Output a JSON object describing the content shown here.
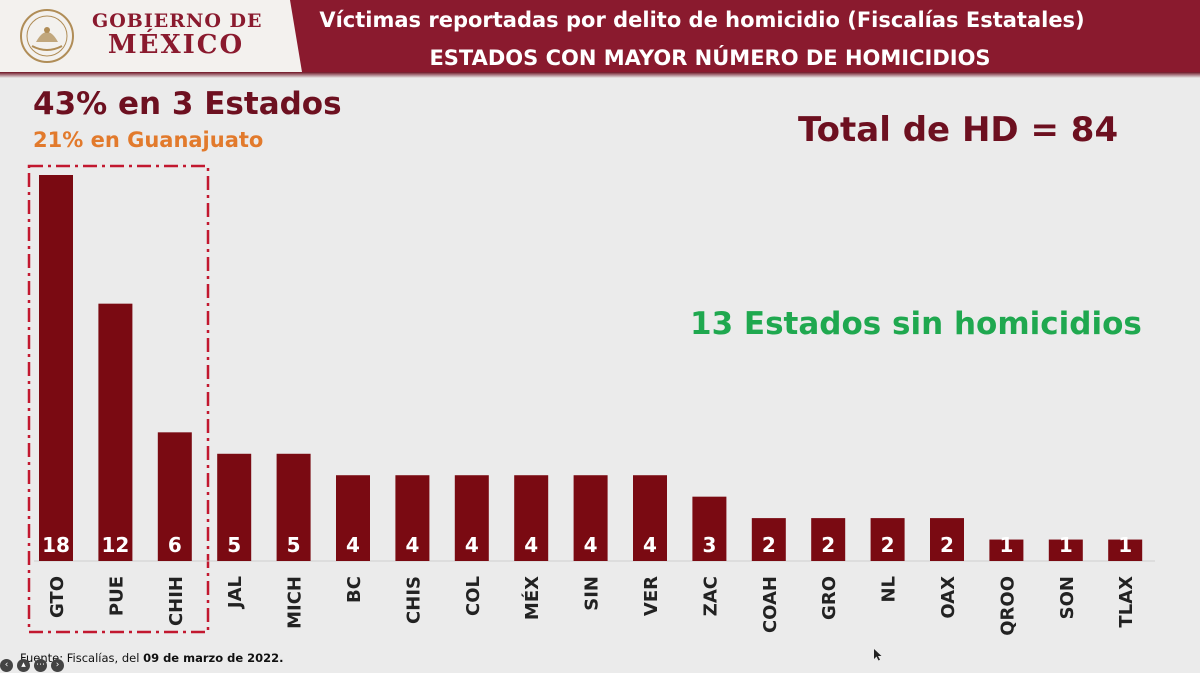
{
  "header": {
    "gov_line1": "GOBIERNO DE",
    "gov_line2": "MÉXICO",
    "title": "Víctimas reportadas por delito de homicidio (Fiscalías Estatales)",
    "subtitle": "ESTADOS CON MAYOR NÚMERO DE HOMICIDIOS"
  },
  "annotations": {
    "summary_main": "43% en 3 Estados",
    "summary_sub": "21% en Guanajuato",
    "total": "Total de HD = 84",
    "no_homicide": "13 Estados sin homicidios"
  },
  "footer": {
    "source_prefix": "Fuente: Fiscalías, del ",
    "source_date": "09 de marzo de 2022."
  },
  "colors": {
    "bar": "#7a0a12",
    "header": "#8a1a2e",
    "highlight_box": "#c2182f",
    "total_text": "#6d1020",
    "orange_text": "#e27a2c",
    "green_text": "#1fa84f"
  },
  "chart_data": {
    "type": "bar",
    "categories": [
      "GTO",
      "PUE",
      "CHIH",
      "JAL",
      "MICH",
      "BC",
      "CHIS",
      "COL",
      "MÉX",
      "SIN",
      "VER",
      "ZAC",
      "COAH",
      "GRO",
      "NL",
      "OAX",
      "QROO",
      "SON",
      "TLAX"
    ],
    "values": [
      18,
      12,
      6,
      5,
      5,
      4,
      4,
      4,
      4,
      4,
      4,
      3,
      2,
      2,
      2,
      2,
      1,
      1,
      1
    ],
    "data_labels": [
      "18",
      "12",
      "6",
      "5",
      "5",
      "4",
      "4",
      "4",
      "4",
      "4",
      "4",
      "3",
      "2",
      "2",
      "2",
      "2",
      "1",
      "1",
      "1"
    ],
    "highlighted_categories": [
      "GTO",
      "PUE",
      "CHIH"
    ],
    "title": "",
    "xlabel": "",
    "ylabel": "",
    "ylim": [
      0,
      18
    ],
    "grid": false,
    "legend": "none"
  }
}
